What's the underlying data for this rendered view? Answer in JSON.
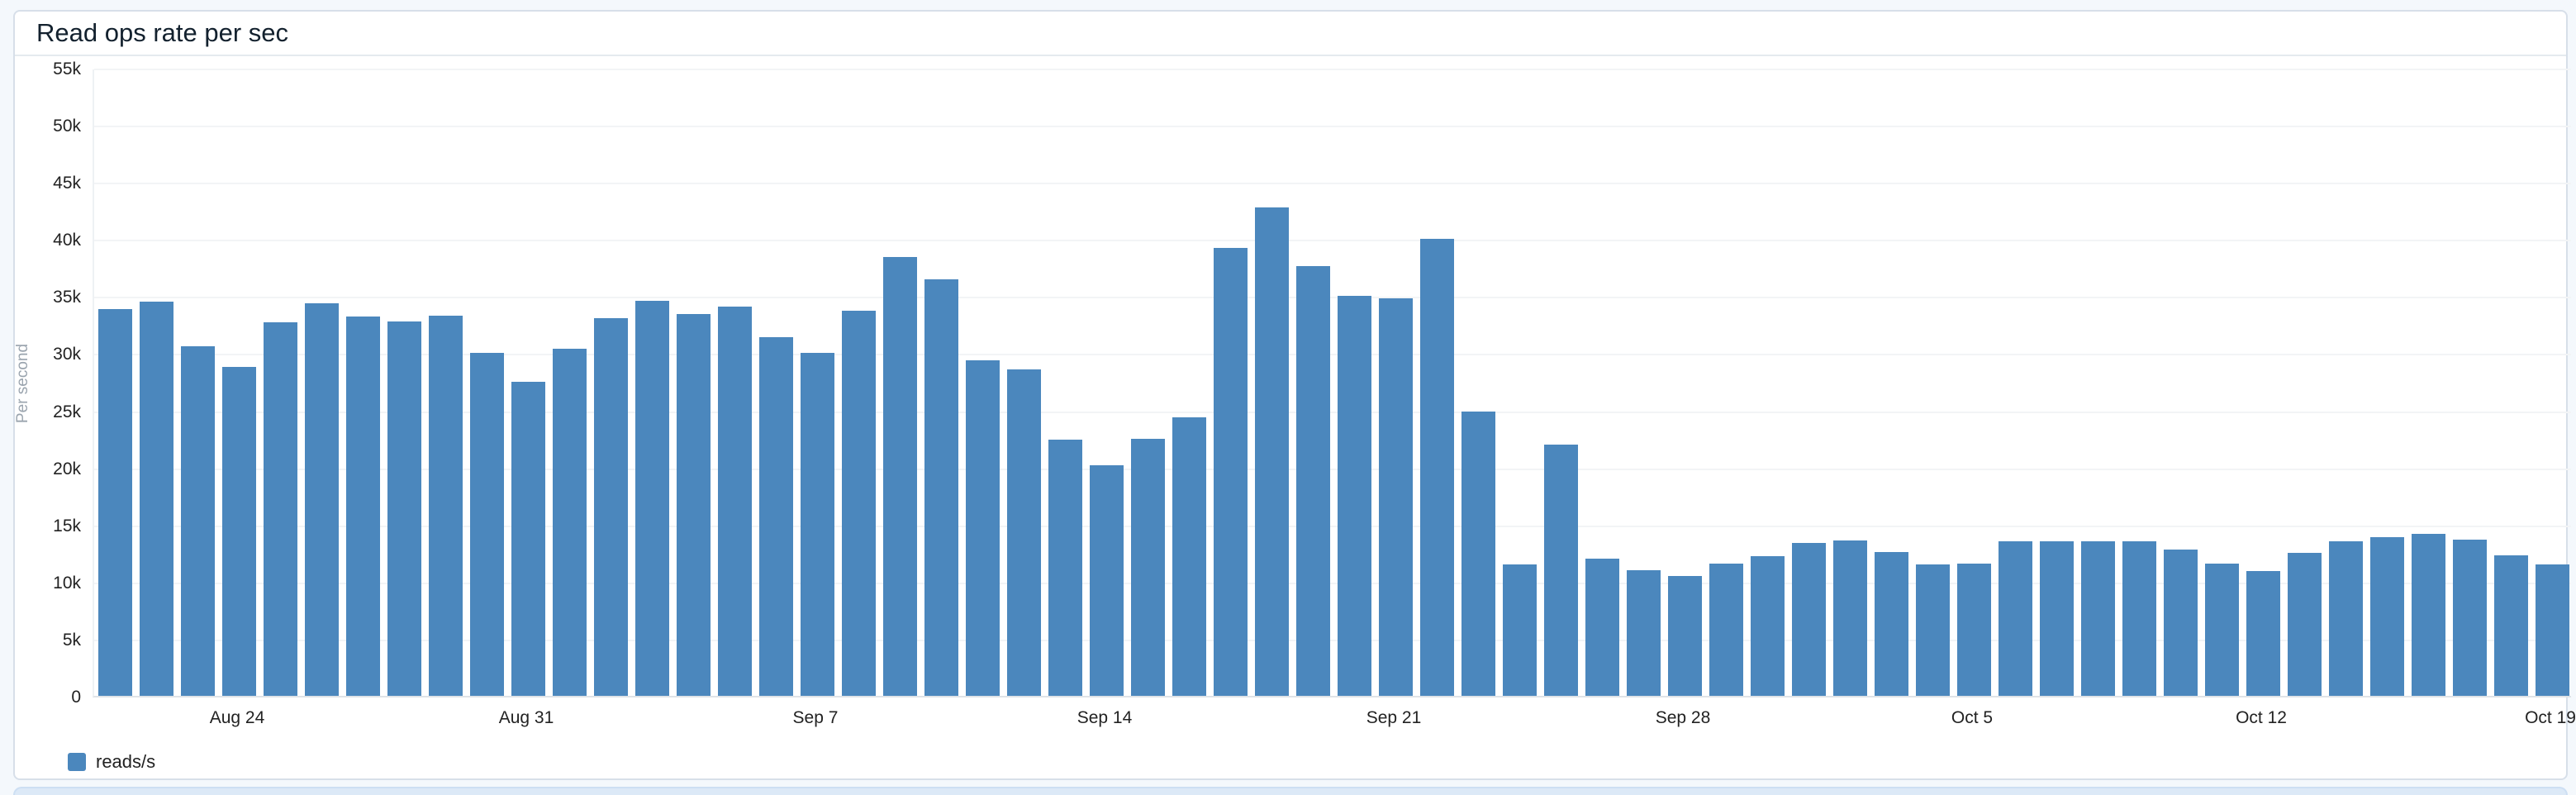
{
  "panel": {
    "title": "Read ops rate per sec"
  },
  "legend": {
    "label": "reads/s",
    "color": "#4b87bd"
  },
  "chart_data": {
    "type": "bar",
    "title": "Read ops rate per sec",
    "xlabel": "",
    "ylabel": "Per second",
    "ylim": [
      0,
      55000
    ],
    "grid": "horizontal",
    "legend_position": "bottom-left",
    "bar_color": "#4b87bd",
    "y_ticks": [
      "0",
      "5k",
      "10k",
      "15k",
      "20k",
      "25k",
      "30k",
      "35k",
      "40k",
      "45k",
      "50k",
      "55k"
    ],
    "x_tick_labels": [
      "Aug 24",
      "Aug 31",
      "Sep 7",
      "Sep 14",
      "Sep 21",
      "Sep 28",
      "Oct 5",
      "Oct 12",
      "Oct 19"
    ],
    "x_tick_indices": [
      3,
      10,
      17,
      24,
      31,
      38,
      45,
      52,
      59
    ],
    "categories": [
      "Aug 21",
      "Aug 22",
      "Aug 23",
      "Aug 24",
      "Aug 25",
      "Aug 26",
      "Aug 27",
      "Aug 28",
      "Aug 29",
      "Aug 30",
      "Aug 31",
      "Sep 1",
      "Sep 2",
      "Sep 3",
      "Sep 4",
      "Sep 5",
      "Sep 6",
      "Sep 7",
      "Sep 8",
      "Sep 9",
      "Sep 10",
      "Sep 11",
      "Sep 12",
      "Sep 13",
      "Sep 14",
      "Sep 15",
      "Sep 16",
      "Sep 17",
      "Sep 18",
      "Sep 19",
      "Sep 20",
      "Sep 21",
      "Sep 22",
      "Sep 23",
      "Sep 24",
      "Sep 25",
      "Sep 26",
      "Sep 27",
      "Sep 28",
      "Sep 29",
      "Sep 30",
      "Oct 1",
      "Oct 2",
      "Oct 3",
      "Oct 4",
      "Oct 5",
      "Oct 6",
      "Oct 7",
      "Oct 8",
      "Oct 9",
      "Oct 10",
      "Oct 11",
      "Oct 12",
      "Oct 13",
      "Oct 14",
      "Oct 15",
      "Oct 16",
      "Oct 17",
      "Oct 18",
      "Oct 19"
    ],
    "series": [
      {
        "name": "reads/s",
        "values": [
          33900,
          34500,
          30600,
          28800,
          32700,
          34400,
          33200,
          32800,
          33300,
          30000,
          27500,
          30400,
          33100,
          34600,
          33400,
          34100,
          31400,
          30000,
          33700,
          38400,
          36500,
          29400,
          28600,
          22400,
          20200,
          22500,
          24400,
          39200,
          42800,
          37600,
          35000,
          34800,
          40000,
          24900,
          11500,
          22000,
          12000,
          11000,
          10500,
          11600,
          12200,
          13400,
          13600,
          12600,
          11500,
          11600,
          13500,
          13500,
          13500,
          13500,
          12800,
          11600,
          10900,
          12500,
          13500,
          13900,
          14200,
          13700,
          12300,
          11500
        ]
      }
    ]
  }
}
